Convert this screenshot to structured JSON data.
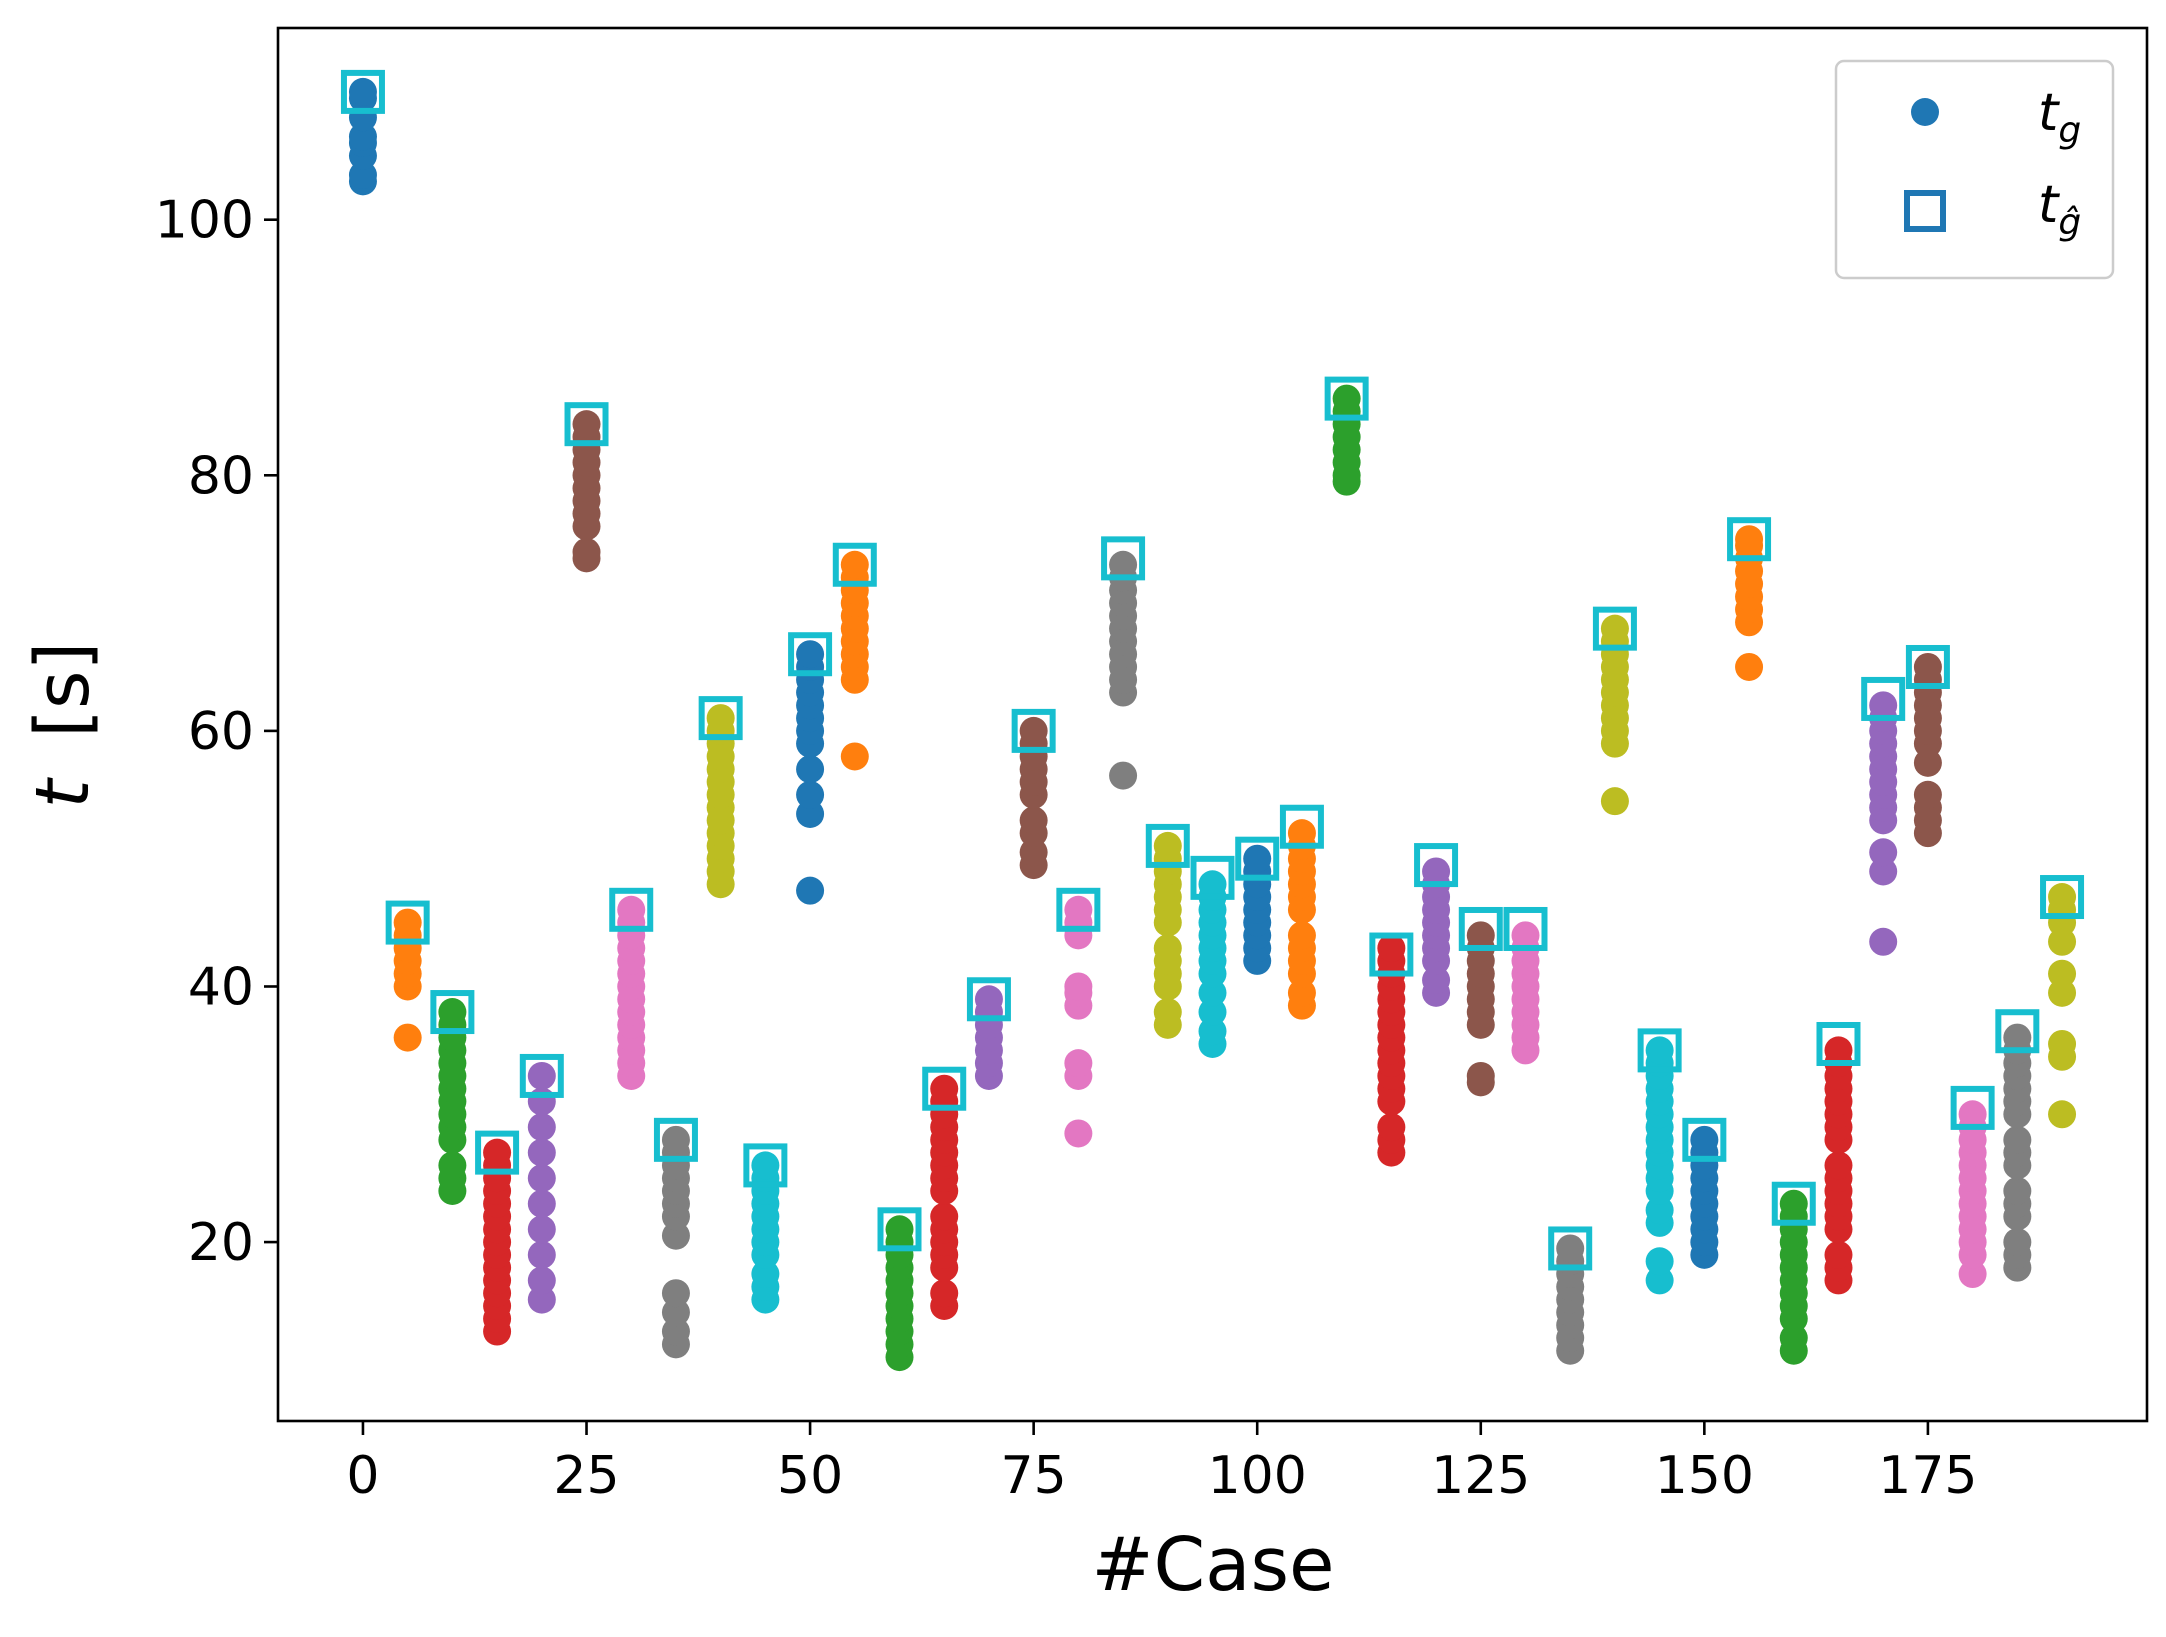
{
  "chart_data": {
    "type": "scatter",
    "xlabel": "#Case",
    "ylabel_var": "t",
    "ylabel_unit": "[s]",
    "xlim": [
      -9.5,
      199.5
    ],
    "ylim": [
      6,
      115
    ],
    "xticks": [
      0,
      25,
      50,
      75,
      100,
      125,
      150,
      175
    ],
    "yticks": [
      20,
      40,
      60,
      80,
      100
    ],
    "grid": false,
    "legend": {
      "position": "top-right",
      "items": [
        {
          "marker": "filled-circle",
          "var": "t",
          "sub": "g",
          "color": "#1f77b4"
        },
        {
          "marker": "open-square",
          "var": "t",
          "sub": "ĝ",
          "color": "#1f77b4"
        }
      ]
    },
    "square_color": "#17becf",
    "palette": [
      "#1f77b4",
      "#ff7f0e",
      "#2ca02c",
      "#d62728",
      "#9467bd",
      "#8c564b",
      "#e377c2",
      "#7f7f7f",
      "#bcbd22",
      "#17becf"
    ],
    "series": [
      {
        "x": 0,
        "t_hat_g": 110,
        "t_g": [
          103,
          103.5,
          105,
          106,
          106.5,
          108,
          109.5,
          110
        ]
      },
      {
        "x": 5,
        "t_hat_g": 45,
        "t_g": [
          36,
          40,
          41,
          42,
          43,
          44,
          45
        ]
      },
      {
        "x": 10,
        "t_hat_g": 38,
        "t_g": [
          24,
          25,
          26,
          28,
          29,
          30,
          31,
          32,
          33,
          34,
          35,
          36,
          37,
          38
        ]
      },
      {
        "x": 15,
        "t_hat_g": 27,
        "t_g": [
          13,
          14,
          15,
          16,
          17,
          18,
          19,
          20,
          21,
          22,
          23,
          24,
          25,
          26,
          27
        ]
      },
      {
        "x": 20,
        "t_hat_g": 33,
        "t_g": [
          15.5,
          17,
          19,
          21,
          23,
          25,
          27,
          29,
          31,
          33
        ]
      },
      {
        "x": 25,
        "t_hat_g": 84,
        "t_g": [
          73.5,
          74,
          76,
          77,
          78,
          79,
          80,
          81,
          82,
          83,
          84
        ]
      },
      {
        "x": 30,
        "t_hat_g": 46,
        "t_g": [
          33,
          34,
          35,
          36,
          37,
          38,
          39,
          40,
          41,
          42,
          43,
          44,
          45,
          46
        ]
      },
      {
        "x": 35,
        "t_hat_g": 28,
        "t_g": [
          12,
          13,
          14.5,
          16,
          20.5,
          22,
          23,
          24,
          25,
          26,
          27,
          28
        ]
      },
      {
        "x": 40,
        "t_hat_g": 61,
        "t_g": [
          48,
          49,
          50,
          51,
          52,
          53,
          54,
          55,
          56,
          57,
          58,
          59,
          60,
          61
        ]
      },
      {
        "x": 45,
        "t_hat_g": 26,
        "t_g": [
          15.5,
          16.5,
          17.5,
          19,
          20,
          21,
          22,
          23,
          24,
          25,
          26
        ]
      },
      {
        "x": 50,
        "t_hat_g": 66,
        "t_g": [
          47.5,
          53.5,
          55,
          57,
          59,
          60,
          61,
          62,
          63,
          64,
          65,
          66
        ]
      },
      {
        "x": 55,
        "t_hat_g": 73,
        "t_g": [
          58,
          64,
          65,
          66,
          67,
          68,
          69,
          70,
          71,
          72,
          73
        ]
      },
      {
        "x": 60,
        "t_hat_g": 21,
        "t_g": [
          11,
          12,
          13,
          14,
          15,
          16,
          17,
          18,
          19,
          20,
          21
        ]
      },
      {
        "x": 65,
        "t_hat_g": 32,
        "t_g": [
          15,
          16,
          18,
          19,
          20,
          21,
          22,
          24,
          25,
          26,
          27,
          28,
          29,
          30,
          31,
          32
        ]
      },
      {
        "x": 70,
        "t_hat_g": 39,
        "t_g": [
          33,
          34,
          35,
          36,
          37,
          38,
          39
        ]
      },
      {
        "x": 75,
        "t_hat_g": 60,
        "t_g": [
          49.5,
          50.5,
          52,
          53,
          55,
          56,
          57,
          58,
          59,
          60
        ]
      },
      {
        "x": 80,
        "t_hat_g": 46,
        "t_g": [
          28.5,
          33,
          34,
          38.5,
          39.5,
          40,
          44,
          45,
          46
        ]
      },
      {
        "x": 85,
        "t_hat_g": 73.5,
        "t_g": [
          56.5,
          63,
          64,
          65,
          66,
          67,
          68,
          69,
          70,
          71,
          72,
          73
        ]
      },
      {
        "x": 90,
        "t_hat_g": 51,
        "t_g": [
          37,
          38,
          40,
          41,
          42,
          43,
          45,
          46,
          47,
          48,
          49,
          50,
          51
        ]
      },
      {
        "x": 95,
        "t_hat_g": 48.5,
        "t_g": [
          35.5,
          36.5,
          38,
          39.5,
          41,
          42,
          43,
          44,
          45,
          46,
          47,
          48
        ]
      },
      {
        "x": 100,
        "t_hat_g": 50,
        "t_g": [
          42,
          43,
          44,
          45,
          46,
          47,
          48,
          49,
          50
        ]
      },
      {
        "x": 105,
        "t_hat_g": 52.5,
        "t_g": [
          38.5,
          39.5,
          41,
          42,
          43,
          44,
          46,
          47,
          48,
          49,
          50,
          51,
          52
        ]
      },
      {
        "x": 110,
        "t_hat_g": 86,
        "t_g": [
          79.5,
          80,
          81,
          82,
          83,
          84,
          85,
          86
        ]
      },
      {
        "x": 115,
        "t_hat_g": 42.5,
        "t_g": [
          27,
          28,
          29,
          31,
          32,
          33,
          34,
          35,
          36,
          37,
          38,
          39,
          40,
          41,
          42,
          43
        ]
      },
      {
        "x": 120,
        "t_hat_g": 49.5,
        "t_g": [
          39.5,
          40.5,
          42,
          43,
          44,
          45,
          46,
          47,
          48,
          49
        ]
      },
      {
        "x": 125,
        "t_hat_g": 44.5,
        "t_g": [
          32.5,
          33,
          37,
          38,
          39,
          40,
          41,
          42,
          43,
          44
        ]
      },
      {
        "x": 130,
        "t_hat_g": 44.5,
        "t_g": [
          35,
          36,
          37,
          38,
          39,
          40,
          41,
          42,
          43,
          44
        ]
      },
      {
        "x": 135,
        "t_hat_g": 19.5,
        "t_g": [
          11.5,
          12.5,
          13.5,
          14.5,
          15.5,
          16.5,
          17.5,
          18.5,
          19.5
        ]
      },
      {
        "x": 140,
        "t_hat_g": 68,
        "t_g": [
          54.5,
          59,
          60,
          61,
          62,
          63,
          64,
          65,
          66,
          67,
          68
        ]
      },
      {
        "x": 145,
        "t_hat_g": 35,
        "t_g": [
          17,
          18.5,
          21.5,
          22.5,
          24,
          25,
          26,
          27,
          28,
          29,
          30,
          31,
          32,
          33,
          34,
          35
        ]
      },
      {
        "x": 150,
        "t_hat_g": 28,
        "t_g": [
          19,
          20,
          21,
          22,
          23,
          24,
          25,
          26,
          27,
          28
        ]
      },
      {
        "x": 155,
        "t_hat_g": 75,
        "t_g": [
          65,
          68.5,
          69.5,
          70.5,
          71.5,
          72.5,
          73.5,
          74.5,
          75
        ]
      },
      {
        "x": 160,
        "t_hat_g": 23,
        "t_g": [
          11.5,
          12.5,
          14,
          15,
          16,
          17,
          18,
          19,
          20,
          21,
          22,
          23
        ]
      },
      {
        "x": 165,
        "t_hat_g": 35.5,
        "t_g": [
          17,
          18,
          19,
          21,
          22,
          23,
          24,
          25,
          26,
          28,
          29,
          30,
          31,
          32,
          33,
          34,
          35
        ]
      },
      {
        "x": 170,
        "t_hat_g": 62.5,
        "t_g": [
          43.5,
          49,
          50.5,
          53,
          54,
          55,
          56,
          57,
          58,
          59,
          60,
          61,
          62
        ]
      },
      {
        "x": 175,
        "t_hat_g": 65,
        "t_g": [
          52,
          53,
          54,
          55,
          57.5,
          59,
          60,
          61,
          62,
          63,
          64,
          65
        ]
      },
      {
        "x": 180,
        "t_hat_g": 30.5,
        "t_g": [
          17.5,
          19,
          20,
          21,
          22,
          23,
          24,
          25,
          26,
          27,
          28,
          29,
          30
        ]
      },
      {
        "x": 185,
        "t_hat_g": 36.5,
        "t_g": [
          18,
          19,
          20,
          22,
          23,
          24,
          26,
          27,
          28,
          30,
          31,
          32,
          33,
          34,
          35,
          36
        ]
      },
      {
        "x": 190,
        "t_hat_g": 47,
        "t_g": [
          30,
          34.5,
          35.5,
          39.5,
          41,
          43.5,
          45,
          46,
          47
        ]
      }
    ]
  }
}
